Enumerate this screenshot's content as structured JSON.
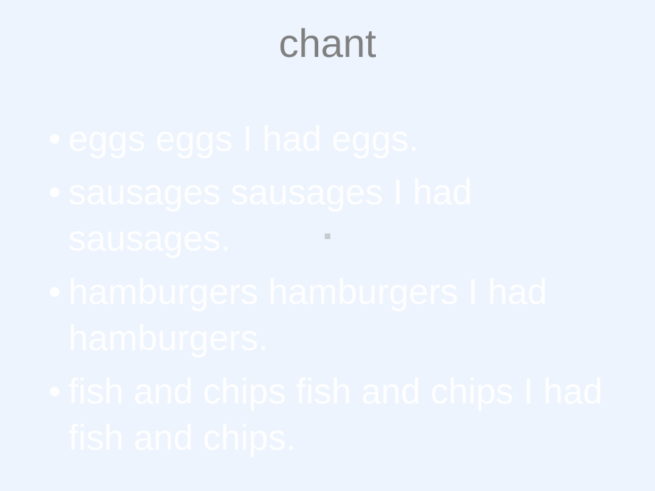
{
  "slide": {
    "title": "chant",
    "title_color": "#808080",
    "title_fontsize": 56,
    "background_color": "#edf4fe",
    "bullet_color": "#fefeff",
    "bullet_fontsize": 50,
    "bullets": [
      "eggs    eggs    I had  eggs.",
      "sausages  sausages   I had sausages.",
      "hamburgers  hamburgers   I  had hamburgers.",
      "fish  and chips  fish and chips  I had  fish  and  chips."
    ],
    "center_dot_color": "#c7ccd1"
  }
}
